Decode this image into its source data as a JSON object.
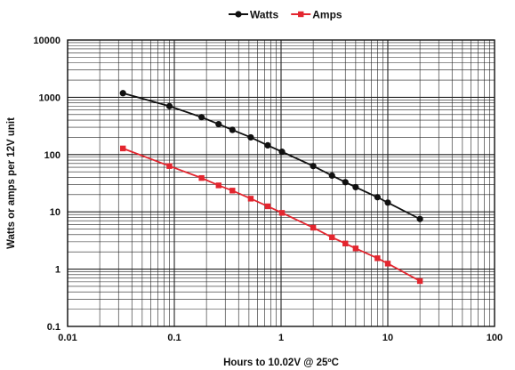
{
  "chart_data": {
    "type": "line",
    "xscale": "log",
    "yscale": "log",
    "xlim": [
      0.01,
      100
    ],
    "ylim": [
      0.1,
      10000
    ],
    "xlabel": "Hours to 10.02V @ 25ºC",
    "ylabel": "Watts or amps per 12V unit",
    "x_tick_labels": [
      "0.01",
      "0.1",
      "1",
      "10",
      "100"
    ],
    "y_tick_labels": [
      "10000",
      "1000",
      "100",
      "10",
      "1",
      "0.1"
    ],
    "x_ticks": [
      0.01,
      0.1,
      1,
      10,
      100
    ],
    "y_ticks": [
      10000,
      1000,
      100,
      10,
      1,
      0.1
    ],
    "grid": true,
    "legend_position": "top-center",
    "series": [
      {
        "name": "Watts",
        "color": "#111111",
        "marker": "circle",
        "points": [
          [
            0.033,
            1180
          ],
          [
            0.09,
            700
          ],
          [
            0.18,
            450
          ],
          [
            0.26,
            340
          ],
          [
            0.35,
            270
          ],
          [
            0.52,
            200
          ],
          [
            0.75,
            145
          ],
          [
            1.02,
            112
          ],
          [
            2.0,
            63
          ],
          [
            3.0,
            43
          ],
          [
            4.0,
            33
          ],
          [
            5.0,
            27
          ],
          [
            8.0,
            18
          ],
          [
            10.0,
            14.5
          ],
          [
            20.0,
            7.5
          ]
        ]
      },
      {
        "name": "Amps",
        "color": "#e3262f",
        "marker": "square",
        "points": [
          [
            0.033,
            128
          ],
          [
            0.09,
            63
          ],
          [
            0.18,
            39
          ],
          [
            0.26,
            29
          ],
          [
            0.35,
            23.5
          ],
          [
            0.52,
            17
          ],
          [
            0.75,
            12.5
          ],
          [
            1.02,
            9.6
          ],
          [
            2.0,
            5.3
          ],
          [
            3.0,
            3.6
          ],
          [
            4.0,
            2.8
          ],
          [
            5.0,
            2.3
          ],
          [
            8.0,
            1.55
          ],
          [
            10.0,
            1.25
          ],
          [
            20.0,
            0.62
          ]
        ]
      }
    ]
  }
}
